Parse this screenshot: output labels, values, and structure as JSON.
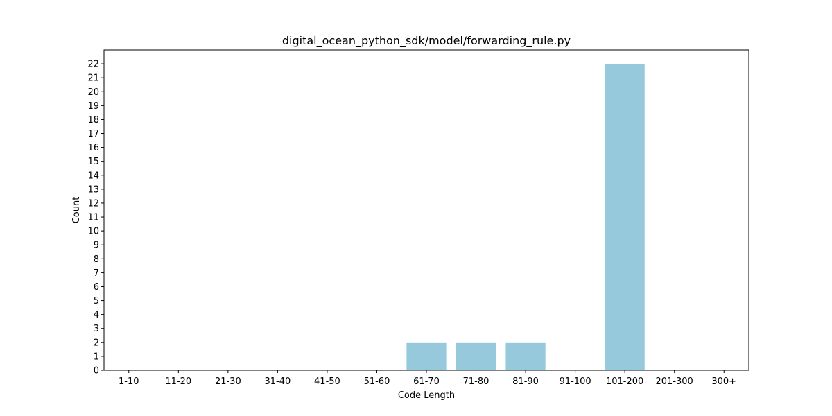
{
  "chart_data": {
    "type": "bar",
    "title": "digital_ocean_python_sdk/model/forwarding_rule.py",
    "xlabel": "Code Length",
    "ylabel": "Count",
    "categories": [
      "1-10",
      "11-20",
      "21-30",
      "31-40",
      "41-50",
      "51-60",
      "61-70",
      "71-80",
      "81-90",
      "91-100",
      "101-200",
      "201-300",
      "300+"
    ],
    "values": [
      0,
      0,
      0,
      0,
      0,
      0,
      2,
      2,
      2,
      0,
      22,
      0,
      0
    ],
    "ylim": [
      0,
      23
    ],
    "yticks": [
      0,
      1,
      2,
      3,
      4,
      5,
      6,
      7,
      8,
      9,
      10,
      11,
      12,
      13,
      14,
      15,
      16,
      17,
      18,
      19,
      20,
      21,
      22
    ],
    "bar_color": "#96c9dc",
    "grid": false,
    "legend": "none"
  }
}
